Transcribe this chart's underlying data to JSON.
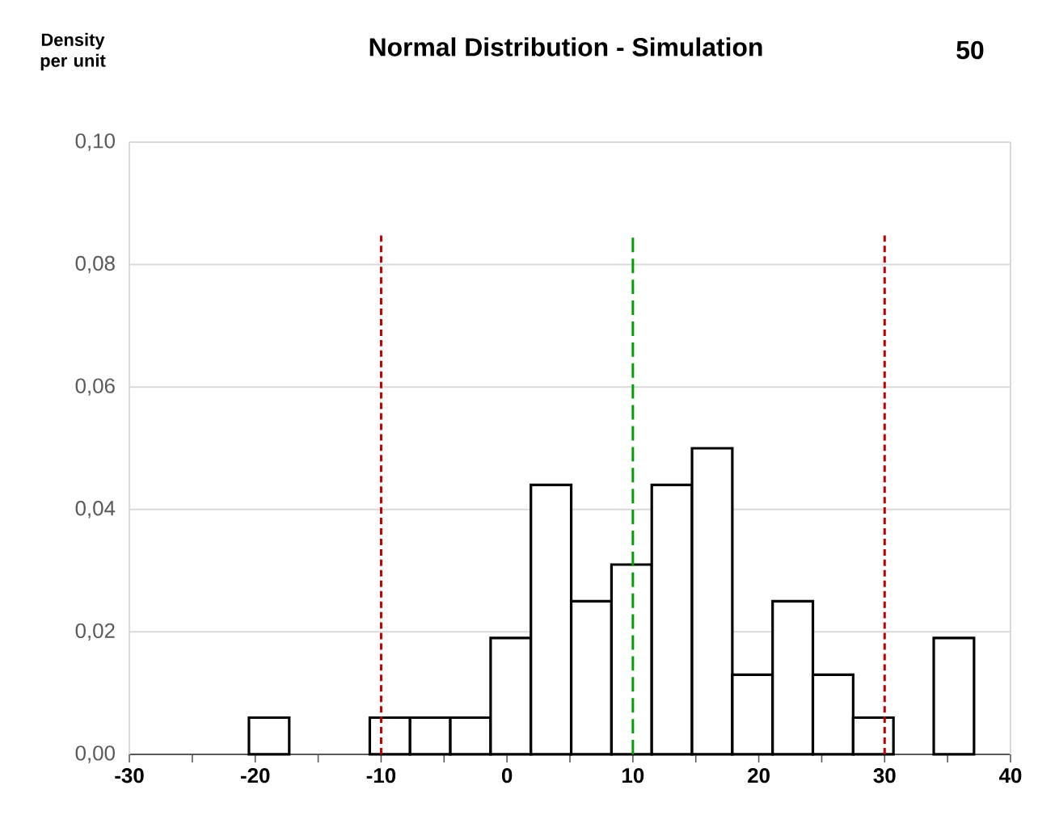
{
  "chart_data": {
    "type": "histogram",
    "title": "Normal Distribution - Simulation",
    "ylabel": "Density per unit",
    "annotations": [
      "50"
    ],
    "bins": [
      -20.5,
      -17.3,
      -14.1,
      -10.9,
      -7.7,
      -4.5,
      -1.3,
      1.9,
      5.1,
      8.3,
      11.5,
      14.7,
      17.9,
      21.1,
      24.3,
      27.5,
      30.7,
      33.9,
      37.1
    ],
    "values": [
      0.006,
      0,
      0,
      0.006,
      0.006,
      0.006,
      0.019,
      0.044,
      0.025,
      0.031,
      0.044,
      0.05,
      0.013,
      0.025,
      0.013,
      0.006,
      0,
      0.019
    ],
    "color": "#000000",
    "xlim": [
      -30,
      40
    ],
    "ylim": [
      0,
      0.1
    ],
    "xticks": [
      -30,
      {
        "value": -25,
        "label": null
      },
      -20,
      {
        "value": -15,
        "label": null
      },
      -10,
      {
        "value": -5,
        "label": null
      },
      0,
      {
        "value": 5,
        "label": null
      },
      10,
      {
        "value": 15,
        "label": null
      },
      20,
      {
        "value": 25,
        "label": null
      },
      30,
      {
        "value": 35,
        "label": null
      },
      40
    ],
    "yticks": [
      {
        "value": 0,
        "label": "0,00"
      },
      {
        "value": 0.02,
        "label": "0,02"
      },
      {
        "value": 0.04,
        "label": "0,04"
      },
      {
        "value": 0.06,
        "label": "0,06"
      },
      {
        "value": 0.08,
        "label": "0,08"
      },
      {
        "value": 0.1,
        "label": "0,10"
      }
    ],
    "grid": "y",
    "ref_lines": [
      {
        "axis": "x",
        "value": -10,
        "color": "#c00000",
        "line_style": "dotted"
      },
      {
        "axis": "x",
        "value": 10,
        "color": "#00a000",
        "line_style": "dashed"
      },
      {
        "axis": "x",
        "value": 30,
        "color": "#c00000",
        "line_style": "dotted"
      }
    ]
  }
}
